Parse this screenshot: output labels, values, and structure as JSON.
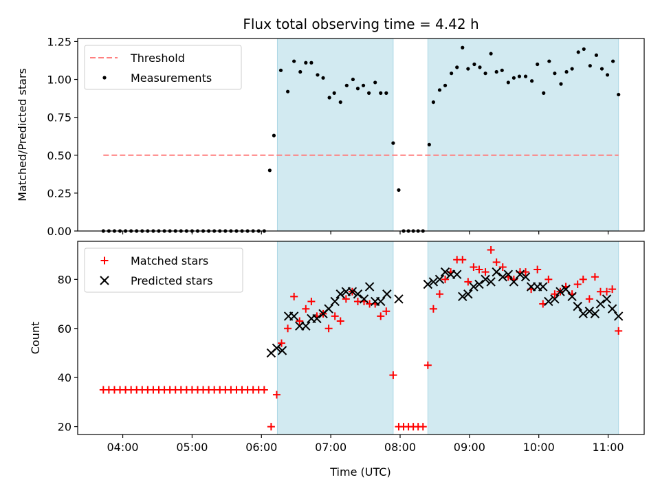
{
  "title": "Flux total observing time = 4.42 h",
  "colors": {
    "threshold": "#ff7f7f",
    "measurement": "#000000",
    "matched": "#ff0000",
    "predicted": "#000000",
    "observing_band": "#add8e6"
  },
  "chart_data": [
    {
      "type": "scatter",
      "panel": "top",
      "ylabel": "Matched/Predicted stars",
      "xlabel": "",
      "x_unit": "hours UTC",
      "xlim": [
        3.35,
        11.52
      ],
      "ylim": [
        0,
        1.27
      ],
      "x_ticks": [
        4,
        5,
        6,
        7,
        8,
        9,
        10,
        11
      ],
      "x_tick_labels": [
        "",
        "",
        "",
        "",
        "",
        "",
        "",
        ""
      ],
      "y_ticks": [
        0,
        0.25,
        0.5,
        0.75,
        1.0,
        1.25
      ],
      "y_tick_labels": [
        "0.00",
        "0.25",
        "0.50",
        "0.75",
        "1.00",
        "1.25"
      ],
      "observing_bands": [
        [
          6.23,
          7.9
        ],
        [
          8.4,
          11.15
        ]
      ],
      "legend": {
        "placement": "upper-left",
        "entries": [
          "Threshold",
          "Measurements"
        ]
      },
      "threshold": {
        "name": "Threshold",
        "y": 0.5,
        "x_range": [
          3.72,
          11.15
        ]
      },
      "series": [
        {
          "name": "Measurements",
          "x": [
            3.72,
            3.8,
            3.88,
            3.96,
            4.04,
            4.12,
            4.2,
            4.28,
            4.36,
            4.44,
            4.52,
            4.6,
            4.68,
            4.76,
            4.84,
            4.92,
            5.0,
            5.08,
            5.16,
            5.24,
            5.32,
            5.4,
            5.48,
            5.56,
            5.64,
            5.72,
            5.8,
            5.88,
            5.96,
            6.04,
            6.12,
            6.18,
            6.28,
            6.38,
            6.47,
            6.56,
            6.64,
            6.72,
            6.81,
            6.89,
            6.98,
            7.05,
            7.14,
            7.23,
            7.32,
            7.39,
            7.47,
            7.55,
            7.64,
            7.72,
            7.8,
            7.9,
            7.98,
            8.05,
            8.12,
            8.19,
            8.26,
            8.33,
            8.42,
            8.48,
            8.57,
            8.65,
            8.74,
            8.82,
            8.9,
            8.98,
            9.07,
            9.15,
            9.23,
            9.31,
            9.39,
            9.47,
            9.56,
            9.64,
            9.72,
            9.81,
            9.9,
            9.98,
            10.07,
            10.15,
            10.23,
            10.32,
            10.4,
            10.48,
            10.57,
            10.65,
            10.74,
            10.83,
            10.91,
            10.99,
            11.07,
            11.15
          ],
          "y": [
            0,
            0,
            0,
            0,
            0,
            0,
            0,
            0,
            0,
            0,
            0,
            0,
            0,
            0,
            0,
            0,
            0,
            0,
            0,
            0,
            0,
            0,
            0,
            0,
            0,
            0,
            0,
            0,
            0,
            0,
            0.4,
            0.63,
            1.06,
            0.92,
            1.12,
            1.05,
            1.11,
            1.11,
            1.03,
            1.01,
            0.88,
            0.91,
            0.85,
            0.96,
            1.0,
            0.94,
            0.96,
            0.91,
            0.98,
            0.91,
            0.91,
            0.58,
            0.27,
            0,
            0,
            0,
            0,
            0,
            0.57,
            0.85,
            0.93,
            0.96,
            1.04,
            1.08,
            1.21,
            1.07,
            1.1,
            1.08,
            1.04,
            1.17,
            1.05,
            1.06,
            0.98,
            1.01,
            1.02,
            1.02,
            0.99,
            1.1,
            0.91,
            1.12,
            1.04,
            0.97,
            1.05,
            1.07,
            1.18,
            1.2,
            1.09,
            1.16,
            1.07,
            1.03,
            1.12,
            0.9
          ]
        }
      ]
    },
    {
      "type": "scatter",
      "panel": "bottom",
      "ylabel": "Count",
      "xlabel": "Time (UTC)",
      "x_unit": "hours UTC",
      "xlim": [
        3.35,
        11.52
      ],
      "ylim": [
        16.8,
        95.5
      ],
      "x_ticks": [
        4,
        5,
        6,
        7,
        8,
        9,
        10,
        11
      ],
      "x_tick_labels": [
        "04:00",
        "05:00",
        "06:00",
        "07:00",
        "08:00",
        "09:00",
        "10:00",
        "11:00"
      ],
      "y_ticks": [
        20,
        40,
        60,
        80
      ],
      "y_tick_labels": [
        "20",
        "40",
        "60",
        "80"
      ],
      "observing_bands": [
        [
          6.23,
          7.9
        ],
        [
          8.4,
          11.15
        ]
      ],
      "legend": {
        "placement": "upper-left",
        "entries": [
          "Matched stars",
          "Predicted stars"
        ]
      },
      "series": [
        {
          "name": "Matched stars",
          "marker": "plus",
          "x": [
            3.72,
            3.8,
            3.88,
            3.96,
            4.04,
            4.12,
            4.2,
            4.28,
            4.36,
            4.44,
            4.52,
            4.6,
            4.68,
            4.76,
            4.84,
            4.92,
            5.0,
            5.08,
            5.16,
            5.24,
            5.32,
            5.4,
            5.48,
            5.56,
            5.64,
            5.72,
            5.8,
            5.88,
            5.96,
            6.04,
            6.14,
            6.22,
            6.29,
            6.38,
            6.47,
            6.55,
            6.64,
            6.72,
            6.8,
            6.89,
            6.97,
            7.06,
            7.14,
            7.22,
            7.31,
            7.39,
            7.48,
            7.56,
            7.64,
            7.72,
            7.8,
            7.9,
            7.98,
            8.05,
            8.12,
            8.19,
            8.26,
            8.33,
            8.4,
            8.48,
            8.57,
            8.65,
            8.73,
            8.82,
            8.9,
            8.98,
            9.06,
            9.14,
            9.23,
            9.31,
            9.39,
            9.48,
            9.56,
            9.64,
            9.73,
            9.81,
            9.89,
            9.98,
            10.06,
            10.14,
            10.23,
            10.31,
            10.39,
            10.48,
            10.56,
            10.64,
            10.73,
            10.81,
            10.89,
            10.98,
            11.06,
            11.15
          ],
          "y": [
            35,
            35,
            35,
            35,
            35,
            35,
            35,
            35,
            35,
            35,
            35,
            35,
            35,
            35,
            35,
            35,
            35,
            35,
            35,
            35,
            35,
            35,
            35,
            35,
            35,
            35,
            35,
            35,
            35,
            35,
            20,
            33,
            54,
            60,
            73,
            63,
            68,
            71,
            65,
            66,
            60,
            65,
            63,
            72,
            75,
            71,
            71,
            70,
            70,
            65,
            67,
            41,
            20,
            20,
            20,
            20,
            20,
            20,
            45,
            68,
            74,
            80,
            83,
            88,
            88,
            79,
            85,
            84,
            83,
            92,
            87,
            85,
            81,
            80,
            83,
            83,
            76,
            84,
            70,
            80,
            74,
            75,
            77,
            74,
            78,
            80,
            72,
            81,
            75,
            75,
            76,
            59
          ]
        },
        {
          "name": "Predicted stars",
          "marker": "x",
          "x": [
            6.14,
            6.22,
            6.3,
            6.39,
            6.47,
            6.55,
            6.64,
            6.72,
            6.8,
            6.89,
            6.97,
            7.06,
            7.14,
            7.22,
            7.31,
            7.39,
            7.48,
            7.56,
            7.64,
            7.72,
            7.81,
            7.98,
            8.4,
            8.48,
            8.57,
            8.65,
            8.73,
            8.82,
            8.9,
            8.98,
            9.06,
            9.14,
            9.23,
            9.31,
            9.39,
            9.48,
            9.56,
            9.64,
            9.73,
            9.81,
            9.89,
            9.98,
            10.06,
            10.14,
            10.23,
            10.31,
            10.39,
            10.48,
            10.56,
            10.64,
            10.73,
            10.81,
            10.89,
            10.98,
            11.06,
            11.15
          ],
          "y": [
            50,
            52,
            51,
            65,
            65,
            61,
            61,
            64,
            64,
            66,
            68,
            71,
            74,
            75,
            75,
            74,
            72,
            77,
            71,
            71,
            74,
            72,
            78,
            79,
            80,
            83,
            82,
            82,
            73,
            74,
            77,
            78,
            80,
            79,
            83,
            81,
            82,
            79,
            82,
            81,
            77,
            77,
            77,
            71,
            72,
            75,
            76,
            73,
            69,
            66,
            67,
            66,
            70,
            72,
            68,
            65
          ]
        }
      ]
    }
  ]
}
